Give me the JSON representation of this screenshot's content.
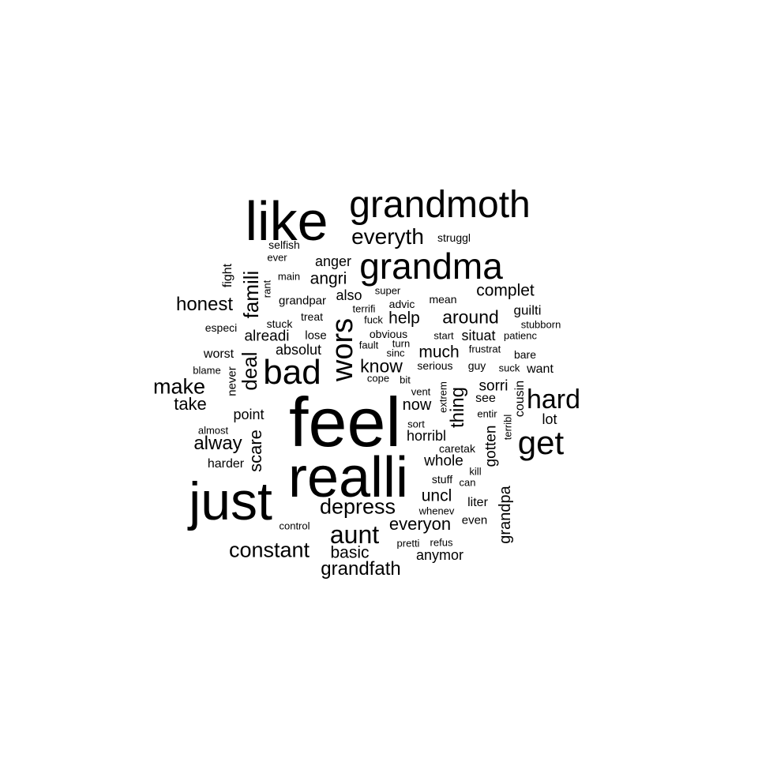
{
  "text_color": "#000000",
  "background_color": "#ffffff",
  "words": [
    "feel",
    "realli",
    "just",
    "like",
    "grandmoth",
    "grandma",
    "bad",
    "get",
    "wors",
    "hard",
    "aunt",
    "everyth",
    "depress",
    "make",
    "constant",
    "famili",
    "deal",
    "honest",
    "alway",
    "grandfath",
    "everyon",
    "know",
    "around",
    "thing",
    "scare",
    "much",
    "uncl",
    "complet",
    "take",
    "basic",
    "help",
    "angri",
    "grandpa",
    "gotten",
    "whole",
    "now",
    "sorri",
    "anger",
    "alreadi",
    "horribl",
    "anymor",
    "absolut",
    "point",
    "situat",
    "guilti",
    "also",
    "lot",
    "want",
    "cousin",
    "see",
    "liter",
    "worst",
    "harder",
    "fight",
    "struggl",
    "selfish",
    "grandpar",
    "lose",
    "never",
    "even",
    "mean",
    "bare",
    "treat",
    "stuck",
    "especi",
    "advic",
    "serious",
    "guy",
    "suck",
    "stuff",
    "caretak",
    "obvious",
    "super",
    "stubborn",
    "control",
    "vent",
    "extrem",
    "entir",
    "terribl",
    "ever",
    "main",
    "rant",
    "blame",
    "almost",
    "terrifi",
    "fuck",
    "start",
    "patienc",
    "fault",
    "turn",
    "sinc",
    "frustrat",
    "cope",
    "bit",
    "sort",
    "kill",
    "can",
    "whenev",
    "pretti",
    "refus"
  ]
}
